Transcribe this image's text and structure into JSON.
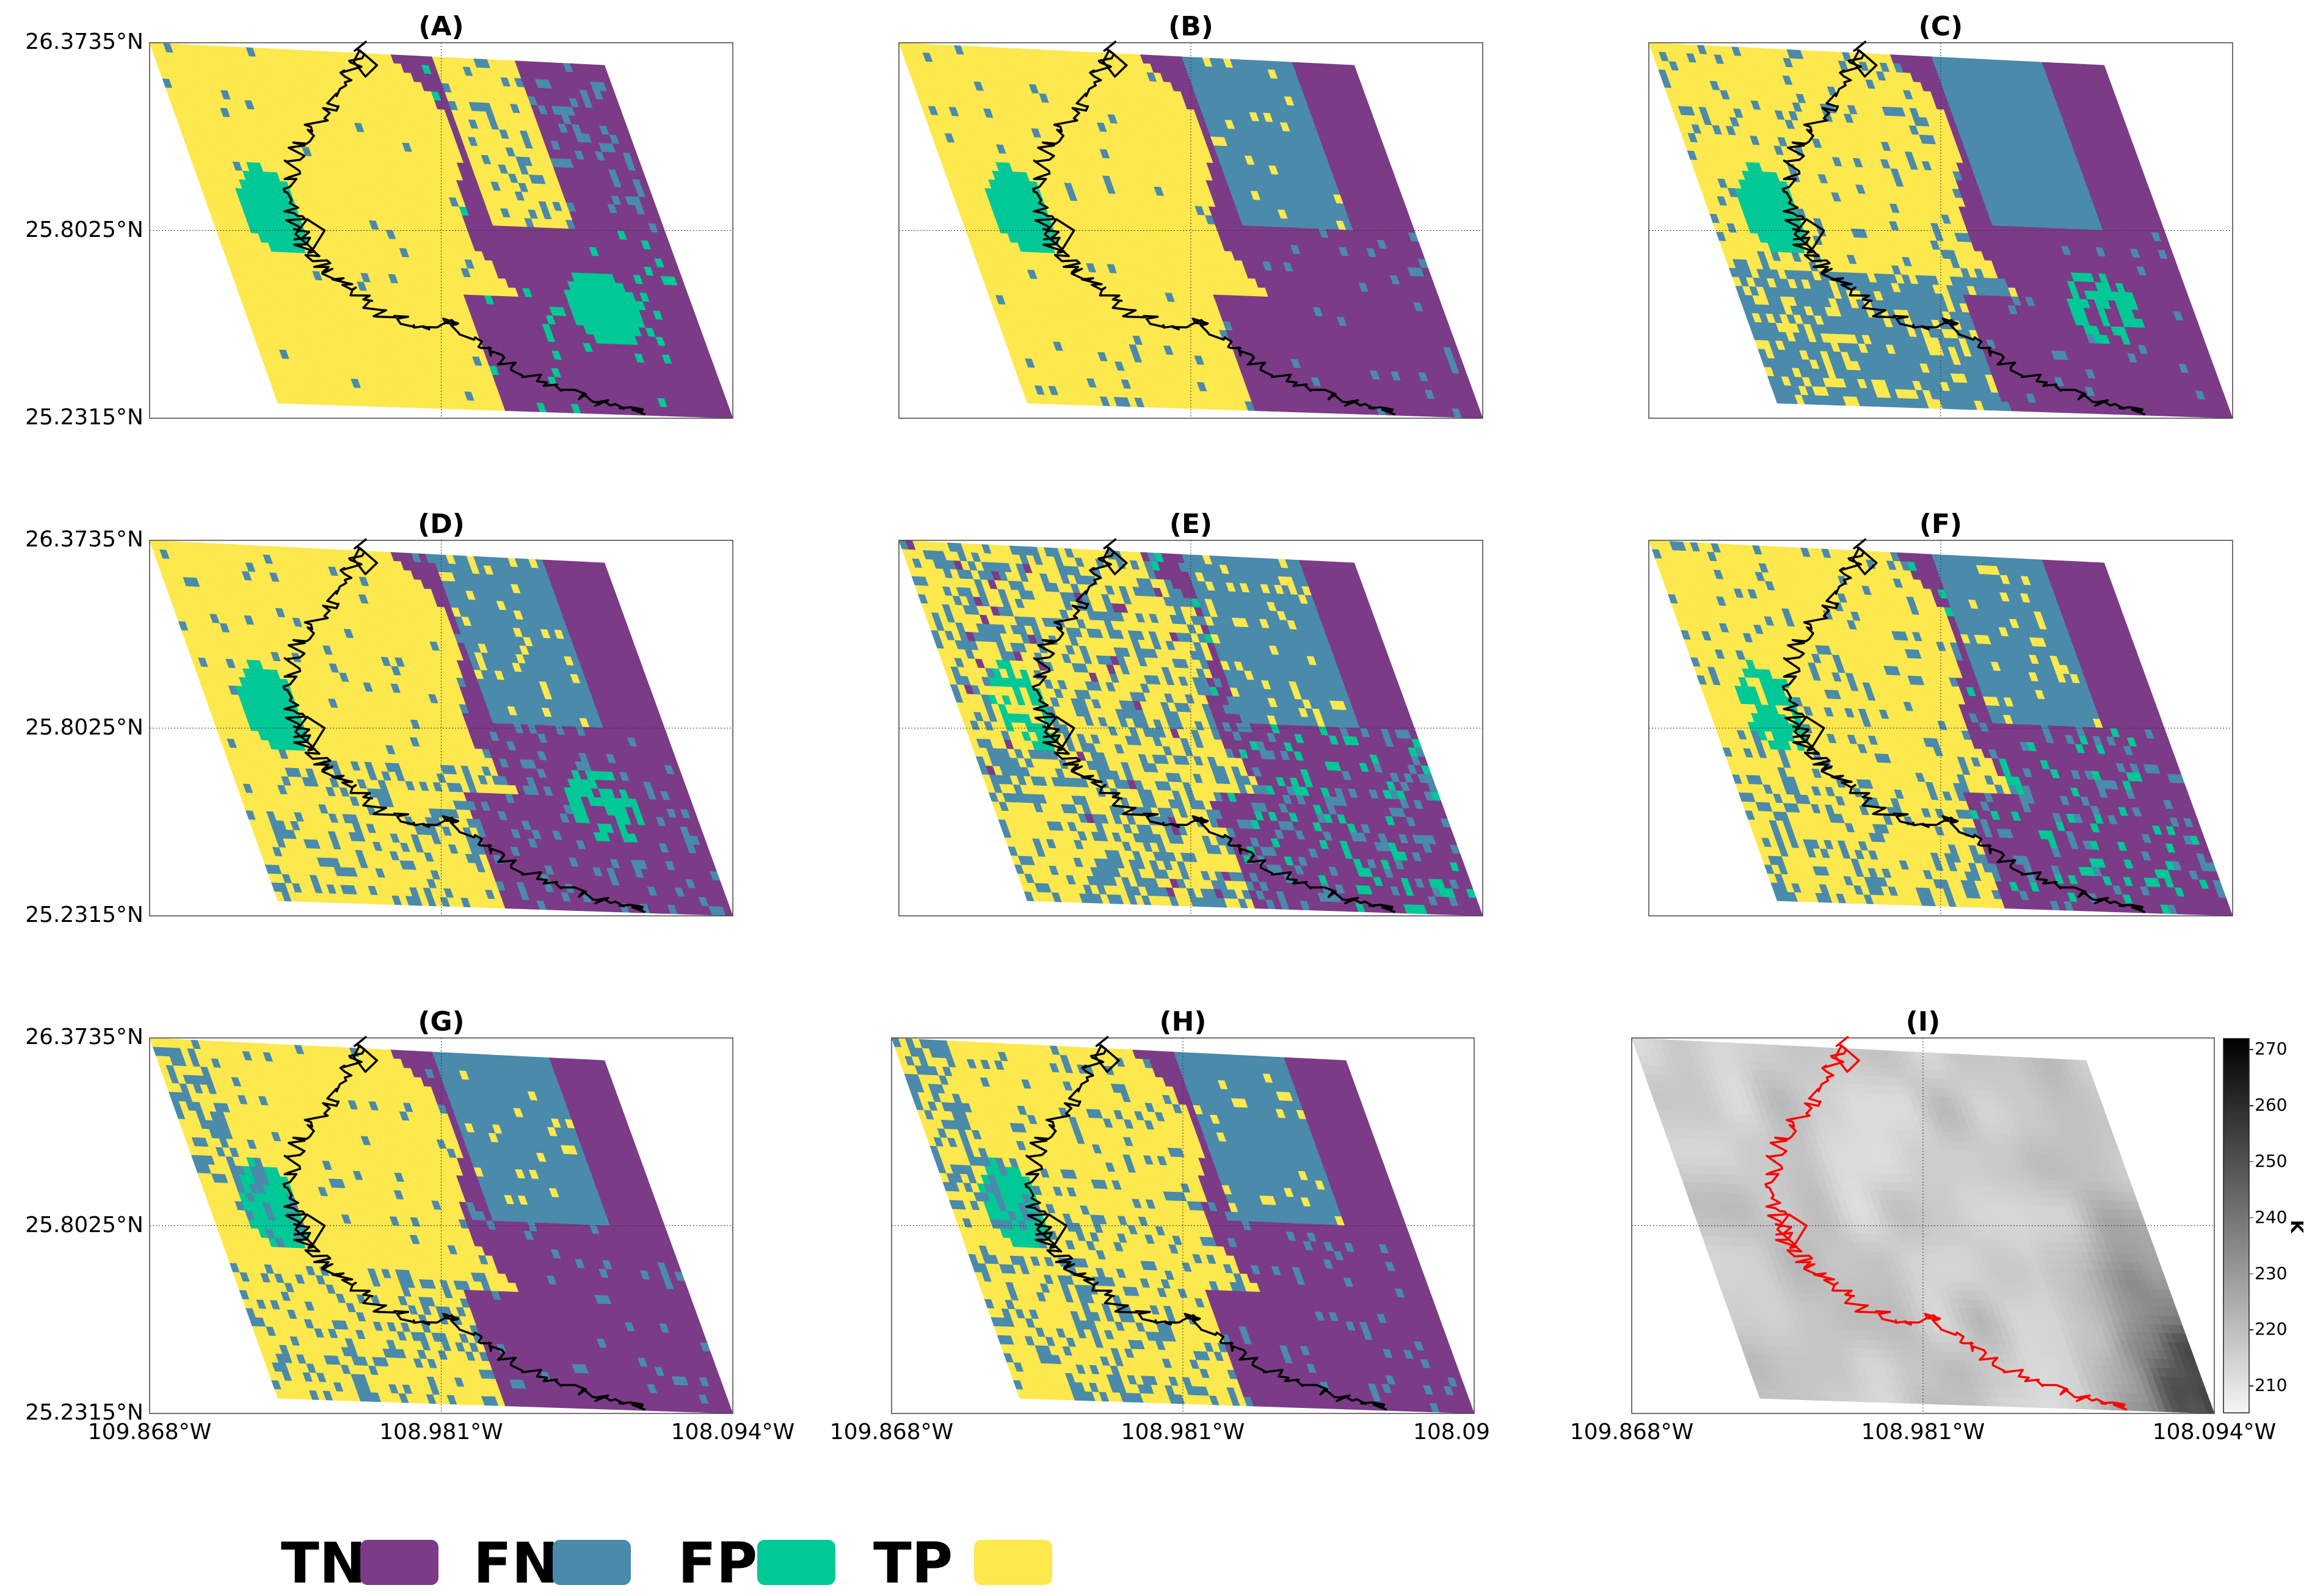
{
  "figure": {
    "class_colors": {
      "TN": "#7b3b87",
      "FN": "#4a8aab",
      "FP": "#00c897",
      "TP": "#fde84d"
    },
    "coastline_color_panels": "#000000",
    "coastline_color_temperature": "#ff0000",
    "panels": [
      {
        "id": "A",
        "title": "(A)",
        "style": "A"
      },
      {
        "id": "B",
        "title": "(B)",
        "style": "B"
      },
      {
        "id": "C",
        "title": "(C)",
        "style": "C"
      },
      {
        "id": "D",
        "title": "(D)",
        "style": "D"
      },
      {
        "id": "E",
        "title": "(E)",
        "style": "E"
      },
      {
        "id": "F",
        "title": "(F)",
        "style": "F"
      },
      {
        "id": "G",
        "title": "(G)",
        "style": "G"
      },
      {
        "id": "H",
        "title": "(H)",
        "style": "H"
      },
      {
        "id": "I",
        "title": "(I)",
        "style": "temperature"
      }
    ],
    "lat_labels": [
      "26.3735°N",
      "25.8025°N",
      "25.2315°N"
    ],
    "lon_labels": [
      "109.868°W",
      "108.981°W",
      "108.094°W"
    ],
    "lon_labels_panel_h": [
      "109.868°W",
      "108.981°W",
      "108.09"
    ],
    "colorbar": {
      "ticks": [
        "270",
        "260",
        "250",
        "240",
        "230",
        "220",
        "210"
      ],
      "unit": "K",
      "range": [
        205,
        272
      ]
    },
    "legend": [
      {
        "label": "TN",
        "color": "#7b3b87"
      },
      {
        "label": "FN",
        "color": "#4a8aab"
      },
      {
        "label": "FP",
        "color": "#00c897"
      },
      {
        "label": "TP",
        "color": "#fde84d"
      }
    ]
  }
}
